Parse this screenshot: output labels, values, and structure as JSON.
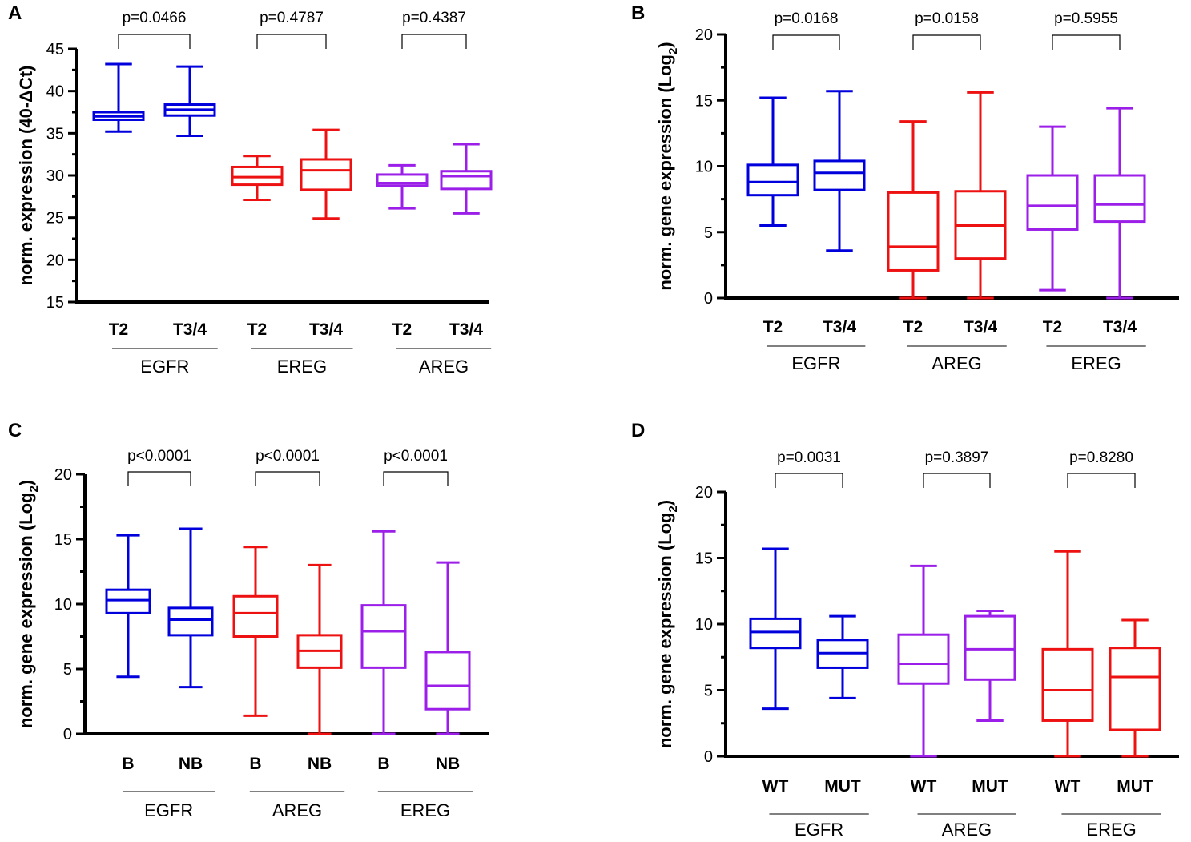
{
  "chart_data": [
    {
      "panel": "A",
      "type": "boxplot",
      "ylabel": "norm. expression (40-ΔCt)",
      "ylim": [
        15,
        45
      ],
      "yticks": [
        15,
        20,
        25,
        30,
        35,
        40,
        45
      ],
      "dotted_zero": false,
      "groups": [
        {
          "name": "EGFR",
          "color": "#0000dd",
          "pvalue": "p=0.0466",
          "boxes": [
            {
              "label": "T2",
              "min": 35.2,
              "q1": 36.6,
              "median": 37.0,
              "q3": 37.5,
              "max": 43.2
            },
            {
              "label": "T3/4",
              "min": 34.7,
              "q1": 37.1,
              "median": 37.8,
              "q3": 38.4,
              "max": 42.9
            }
          ]
        },
        {
          "name": "EREG",
          "color": "#ee1111",
          "pvalue": "p=0.4787",
          "boxes": [
            {
              "label": "T2",
              "min": 27.1,
              "q1": 28.9,
              "median": 29.8,
              "q3": 31.0,
              "max": 32.3
            },
            {
              "label": "T3/4",
              "min": 24.9,
              "q1": 28.3,
              "median": 30.6,
              "q3": 31.9,
              "max": 35.4
            }
          ]
        },
        {
          "name": "AREG",
          "color": "#9b1fe8",
          "pvalue": "p=0.4387",
          "boxes": [
            {
              "label": "T2",
              "min": 26.1,
              "q1": 28.8,
              "median": 29.1,
              "q3": 30.1,
              "max": 31.2
            },
            {
              "label": "T3/4",
              "min": 25.5,
              "q1": 28.4,
              "median": 29.9,
              "q3": 30.5,
              "max": 33.7
            }
          ]
        }
      ]
    },
    {
      "panel": "B",
      "type": "boxplot",
      "ylabel": "norm. gene expression (Log",
      "ylabel_sub": "2",
      "ylabel_close": ")",
      "ylim": [
        0,
        20
      ],
      "yticks": [
        0,
        5,
        10,
        15,
        20
      ],
      "dotted_zero": true,
      "groups": [
        {
          "name": "EGFR",
          "color": "#0000dd",
          "pvalue": "p=0.0168",
          "boxes": [
            {
              "label": "T2",
              "min": 5.5,
              "q1": 7.8,
              "median": 8.8,
              "q3": 10.1,
              "max": 15.2
            },
            {
              "label": "T3/4",
              "min": 3.6,
              "q1": 8.2,
              "median": 9.5,
              "q3": 10.4,
              "max": 15.7
            }
          ]
        },
        {
          "name": "AREG",
          "color": "#ee1111",
          "pvalue": "p=0.0158",
          "boxes": [
            {
              "label": "T2",
              "min": 0.0,
              "q1": 2.1,
              "median": 3.9,
              "q3": 8.0,
              "max": 13.4
            },
            {
              "label": "T3/4",
              "min": 0.0,
              "q1": 3.0,
              "median": 5.5,
              "q3": 8.1,
              "max": 15.6
            }
          ]
        },
        {
          "name": "EREG",
          "color": "#9b1fe8",
          "pvalue": "p=0.5955",
          "boxes": [
            {
              "label": "T2",
              "min": 0.6,
              "q1": 5.2,
              "median": 7.0,
              "q3": 9.3,
              "max": 13.0
            },
            {
              "label": "T3/4",
              "min": 0.0,
              "q1": 5.8,
              "median": 7.1,
              "q3": 9.3,
              "max": 14.4
            }
          ]
        }
      ]
    },
    {
      "panel": "C",
      "type": "boxplot",
      "ylabel": "norm. gene expression (Log",
      "ylabel_sub": "2",
      "ylabel_close": ")",
      "ylim": [
        0,
        20
      ],
      "yticks": [
        0,
        5,
        10,
        15,
        20
      ],
      "dotted_zero": true,
      "groups": [
        {
          "name": "EGFR",
          "color": "#0000dd",
          "pvalue": "p<0.0001",
          "boxes": [
            {
              "label": "B",
              "min": 4.4,
              "q1": 9.3,
              "median": 10.3,
              "q3": 11.1,
              "max": 15.3
            },
            {
              "label": "NB",
              "min": 3.6,
              "q1": 7.6,
              "median": 8.8,
              "q3": 9.7,
              "max": 15.8
            }
          ]
        },
        {
          "name": "AREG",
          "color": "#ee1111",
          "pvalue": "p<0.0001",
          "boxes": [
            {
              "label": "B",
              "min": 1.4,
              "q1": 7.5,
              "median": 9.3,
              "q3": 10.6,
              "max": 14.4
            },
            {
              "label": "NB",
              "min": 0.0,
              "q1": 5.1,
              "median": 6.4,
              "q3": 7.6,
              "max": 13.0
            }
          ]
        },
        {
          "name": "EREG",
          "color": "#9b1fe8",
          "pvalue": "p<0.0001",
          "boxes": [
            {
              "label": "B",
              "min": 0.0,
              "q1": 5.1,
              "median": 7.9,
              "q3": 9.9,
              "max": 15.6
            },
            {
              "label": "NB",
              "min": 0.0,
              "q1": 1.9,
              "median": 3.7,
              "q3": 6.3,
              "max": 13.2
            }
          ]
        }
      ]
    },
    {
      "panel": "D",
      "type": "boxplot",
      "ylabel": "norm. gene expression (Log",
      "ylabel_sub": "2",
      "ylabel_close": ")",
      "ylim": [
        0,
        20
      ],
      "yticks": [
        0,
        5,
        10,
        15,
        20
      ],
      "dotted_zero": true,
      "groups": [
        {
          "name": "EGFR",
          "color": "#0000dd",
          "pvalue": "p=0.0031",
          "boxes": [
            {
              "label": "WT",
              "min": 3.6,
              "q1": 8.2,
              "median": 9.4,
              "q3": 10.4,
              "max": 15.7
            },
            {
              "label": "MUT",
              "min": 4.4,
              "q1": 6.7,
              "median": 7.8,
              "q3": 8.8,
              "max": 10.6
            }
          ]
        },
        {
          "name": "AREG",
          "color": "#9b1fe8",
          "pvalue": "p=0.3897",
          "boxes": [
            {
              "label": "WT",
              "min": 0.0,
              "q1": 5.5,
              "median": 7.0,
              "q3": 9.2,
              "max": 14.4
            },
            {
              "label": "MUT",
              "min": 2.7,
              "q1": 5.8,
              "median": 8.1,
              "q3": 10.6,
              "max": 11.0
            }
          ]
        },
        {
          "name": "EREG",
          "color": "#ee1111",
          "pvalue": "p=0.8280",
          "boxes": [
            {
              "label": "WT",
              "min": 0.0,
              "q1": 2.7,
              "median": 5.0,
              "q3": 8.1,
              "max": 15.5
            },
            {
              "label": "MUT",
              "min": 0.0,
              "q1": 2.0,
              "median": 6.0,
              "q3": 8.2,
              "max": 10.3
            }
          ]
        }
      ]
    }
  ]
}
